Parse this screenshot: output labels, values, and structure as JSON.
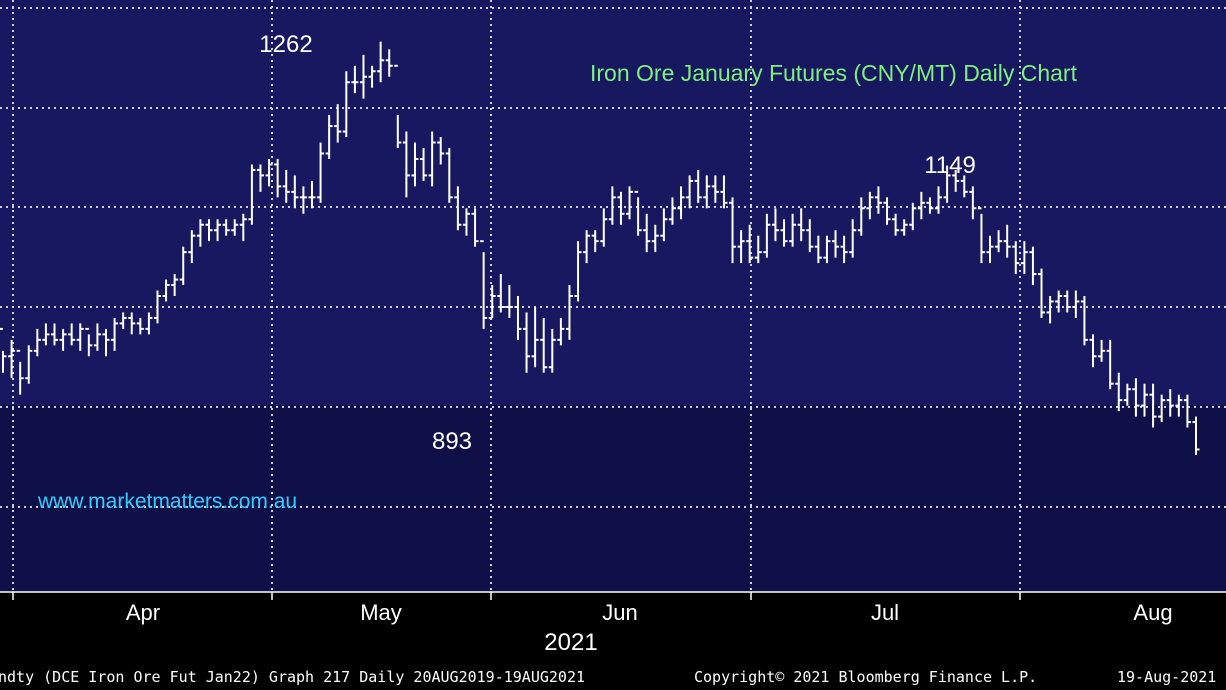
{
  "chart_data": {
    "type": "ohlc",
    "title": "Iron Ore January Futures (CNY/MT) Daily Chart",
    "year_label": "2021",
    "x_month_labels": [
      "Apr",
      "May",
      "Jun",
      "Jul",
      "Aug"
    ],
    "y_range": [
      760,
      1300
    ],
    "grid": true,
    "annotations": [
      {
        "text": "1262",
        "bar": 48
      },
      {
        "text": "893",
        "bar": 70
      },
      {
        "text": "1149",
        "bar": 137
      }
    ],
    "bars": [
      [
        1000,
        980,
        960,
        975
      ],
      [
        975,
        990,
        955,
        980
      ],
      [
        980,
        970,
        940,
        955
      ],
      [
        955,
        985,
        950,
        980
      ],
      [
        980,
        1000,
        975,
        990
      ],
      [
        990,
        1005,
        985,
        995
      ],
      [
        995,
        1005,
        985,
        990
      ],
      [
        990,
        1000,
        980,
        995
      ],
      [
        995,
        1005,
        985,
        990
      ],
      [
        990,
        1005,
        980,
        1000
      ],
      [
        1000,
        995,
        975,
        985
      ],
      [
        985,
        1005,
        980,
        995
      ],
      [
        995,
        1000,
        975,
        990
      ],
      [
        990,
        1010,
        980,
        1005
      ],
      [
        1005,
        1015,
        1000,
        1010
      ],
      [
        1010,
        1015,
        995,
        1005
      ],
      [
        1005,
        1010,
        995,
        1000
      ],
      [
        1000,
        1015,
        995,
        1010
      ],
      [
        1010,
        1035,
        1005,
        1030
      ],
      [
        1030,
        1045,
        1025,
        1040
      ],
      [
        1040,
        1050,
        1030,
        1045
      ],
      [
        1045,
        1075,
        1040,
        1070
      ],
      [
        1070,
        1090,
        1060,
        1085
      ],
      [
        1085,
        1100,
        1075,
        1095
      ],
      [
        1095,
        1100,
        1080,
        1090
      ],
      [
        1090,
        1100,
        1080,
        1095
      ],
      [
        1095,
        1100,
        1085,
        1090
      ],
      [
        1090,
        1100,
        1085,
        1095
      ],
      [
        1095,
        1105,
        1080,
        1100
      ],
      [
        1100,
        1150,
        1095,
        1145
      ],
      [
        1145,
        1150,
        1125,
        1140
      ],
      [
        1140,
        1155,
        1130,
        1150
      ],
      [
        1150,
        1155,
        1120,
        1130
      ],
      [
        1130,
        1145,
        1115,
        1125
      ],
      [
        1125,
        1140,
        1110,
        1120
      ],
      [
        1120,
        1130,
        1105,
        1120
      ],
      [
        1120,
        1135,
        1110,
        1120
      ],
      [
        1120,
        1170,
        1115,
        1160
      ],
      [
        1160,
        1195,
        1155,
        1185
      ],
      [
        1185,
        1205,
        1170,
        1180
      ],
      [
        1180,
        1235,
        1175,
        1225
      ],
      [
        1225,
        1240,
        1215,
        1225
      ],
      [
        1225,
        1250,
        1210,
        1230
      ],
      [
        1230,
        1240,
        1220,
        1235
      ],
      [
        1235,
        1262,
        1225,
        1245
      ],
      [
        1245,
        1255,
        1230,
        1240
      ],
      [
        1240,
        1195,
        1165,
        1170
      ],
      [
        1170,
        1180,
        1120,
        1140
      ],
      [
        1140,
        1170,
        1130,
        1155
      ],
      [
        1155,
        1165,
        1135,
        1140
      ],
      [
        1140,
        1180,
        1130,
        1170
      ],
      [
        1170,
        1175,
        1150,
        1160
      ],
      [
        1160,
        1165,
        1115,
        1120
      ],
      [
        1120,
        1130,
        1090,
        1095
      ],
      [
        1095,
        1110,
        1085,
        1105
      ],
      [
        1105,
        1110,
        1075,
        1080
      ],
      [
        1080,
        1070,
        1000,
        1010
      ],
      [
        1010,
        1040,
        1010,
        1030
      ],
      [
        1030,
        1050,
        1015,
        1020
      ],
      [
        1020,
        1040,
        1010,
        1020
      ],
      [
        1020,
        1030,
        990,
        1000
      ],
      [
        1000,
        1015,
        960,
        975
      ],
      [
        975,
        1020,
        965,
        990
      ],
      [
        990,
        1010,
        960,
        965
      ],
      [
        965,
        1000,
        960,
        990
      ],
      [
        990,
        1010,
        985,
        1000
      ],
      [
        1000,
        1040,
        990,
        1030
      ],
      [
        1030,
        1080,
        1025,
        1070
      ],
      [
        1070,
        1090,
        1060,
        1085
      ],
      [
        1085,
        1090,
        1070,
        1080
      ],
      [
        1080,
        1110,
        1075,
        1100
      ],
      [
        1100,
        1130,
        1095,
        1120
      ],
      [
        1120,
        1125,
        1095,
        1105
      ],
      [
        1105,
        1130,
        1100,
        1125
      ],
      [
        1125,
        1120,
        1085,
        1090
      ],
      [
        1090,
        1105,
        1070,
        1080
      ],
      [
        1080,
        1095,
        1070,
        1085
      ],
      [
        1085,
        1110,
        1080,
        1100
      ],
      [
        1100,
        1120,
        1095,
        1110
      ],
      [
        1110,
        1130,
        1100,
        1120
      ],
      [
        1120,
        1140,
        1110,
        1135
      ],
      [
        1135,
        1145,
        1115,
        1120
      ],
      [
        1120,
        1140,
        1110,
        1130
      ],
      [
        1130,
        1140,
        1115,
        1125
      ],
      [
        1125,
        1140,
        1110,
        1115
      ],
      [
        1115,
        1120,
        1060,
        1075
      ],
      [
        1075,
        1090,
        1060,
        1080
      ],
      [
        1080,
        1095,
        1060,
        1065
      ],
      [
        1065,
        1085,
        1060,
        1070
      ],
      [
        1070,
        1105,
        1065,
        1095
      ],
      [
        1095,
        1110,
        1080,
        1090
      ],
      [
        1090,
        1100,
        1075,
        1080
      ],
      [
        1080,
        1105,
        1075,
        1095
      ],
      [
        1095,
        1110,
        1080,
        1090
      ],
      [
        1090,
        1100,
        1070,
        1075
      ],
      [
        1075,
        1085,
        1060,
        1065
      ],
      [
        1065,
        1085,
        1060,
        1080
      ],
      [
        1080,
        1090,
        1065,
        1075
      ],
      [
        1075,
        1085,
        1060,
        1070
      ],
      [
        1070,
        1100,
        1065,
        1090
      ],
      [
        1090,
        1120,
        1085,
        1110
      ],
      [
        1110,
        1125,
        1100,
        1120
      ],
      [
        1120,
        1130,
        1105,
        1115
      ],
      [
        1115,
        1120,
        1095,
        1100
      ],
      [
        1100,
        1105,
        1085,
        1090
      ],
      [
        1090,
        1100,
        1085,
        1095
      ],
      [
        1095,
        1115,
        1090,
        1110
      ],
      [
        1110,
        1125,
        1100,
        1115
      ],
      [
        1115,
        1120,
        1105,
        1110
      ],
      [
        1110,
        1130,
        1105,
        1120
      ],
      [
        1120,
        1149,
        1115,
        1140
      ],
      [
        1140,
        1145,
        1125,
        1135
      ],
      [
        1135,
        1140,
        1120,
        1125
      ],
      [
        1125,
        1130,
        1100,
        1110
      ],
      [
        1110,
        1105,
        1060,
        1070
      ],
      [
        1070,
        1085,
        1060,
        1075
      ],
      [
        1075,
        1090,
        1070,
        1080
      ],
      [
        1080,
        1095,
        1065,
        1075
      ],
      [
        1075,
        1080,
        1050,
        1060
      ],
      [
        1060,
        1080,
        1050,
        1070
      ],
      [
        1070,
        1075,
        1040,
        1050
      ],
      [
        1050,
        1055,
        1010,
        1015
      ],
      [
        1015,
        1030,
        1005,
        1025
      ],
      [
        1025,
        1035,
        1015,
        1030
      ],
      [
        1030,
        1035,
        1015,
        1020
      ],
      [
        1020,
        1035,
        1010,
        1025
      ],
      [
        1025,
        1030,
        985,
        990
      ],
      [
        990,
        995,
        965,
        975
      ],
      [
        975,
        990,
        970,
        980
      ],
      [
        980,
        990,
        945,
        950
      ],
      [
        950,
        960,
        925,
        935
      ],
      [
        935,
        950,
        930,
        945
      ],
      [
        945,
        955,
        920,
        930
      ],
      [
        930,
        950,
        920,
        940
      ],
      [
        940,
        950,
        910,
        920
      ],
      [
        920,
        940,
        915,
        935
      ],
      [
        935,
        945,
        920,
        930
      ],
      [
        930,
        940,
        920,
        935
      ],
      [
        935,
        940,
        910,
        915
      ],
      [
        915,
        920,
        885,
        890
      ]
    ]
  },
  "watermark": "www.marketmatters.com.au",
  "footer": {
    "left": "ndty (DCE Iron Ore Fut  Jan22) Graph 217  Daily 20AUG2019-19AUG2021",
    "center": "Copyright© 2021 Bloomberg Finance L.P.",
    "right": "19-Aug-2021"
  },
  "colors": {
    "background": "#181860",
    "lower_background": "#101048",
    "bars": "#ffffff",
    "grid": "#d0d0d0",
    "title": "#7ef07e",
    "watermark": "#33ccff",
    "text": "#ffffff"
  }
}
